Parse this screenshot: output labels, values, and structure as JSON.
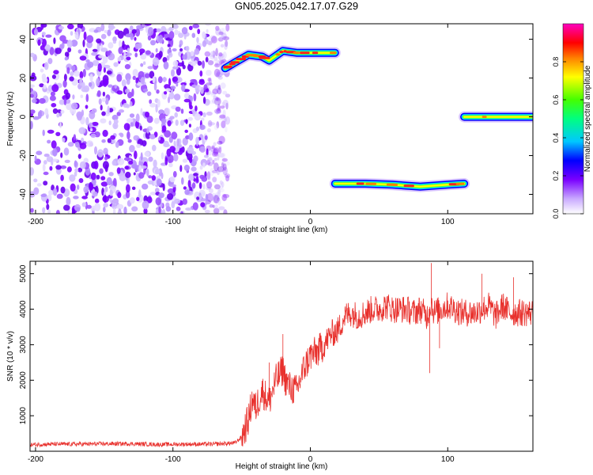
{
  "title": "GN05.2025.042.17.07.G29",
  "chart_data": [
    {
      "type": "heatmap",
      "xlabel": "Height of straight line (km)",
      "ylabel": "Frequency (Hz)",
      "xlim": [
        -204,
        162
      ],
      "ylim": [
        -50,
        48
      ],
      "xticks": [
        -200,
        -100,
        0,
        100
      ],
      "yticks": [
        -40,
        -20,
        0,
        20,
        40
      ],
      "colorbar": {
        "label": "Normalized spectral amplitude",
        "range": [
          0,
          1
        ],
        "ticks": [
          0,
          0.2,
          0.4,
          0.6,
          0.8
        ]
      },
      "noise_region": {
        "x_range": [
          -204,
          -60
        ],
        "y_range": [
          -50,
          48
        ]
      },
      "tracks": [
        {
          "points": [
            [
              -62,
              25
            ],
            [
              -55,
              28
            ],
            [
              -45,
              32
            ],
            [
              -35,
              31
            ],
            [
              -30,
              29
            ],
            [
              -20,
              34
            ],
            [
              -10,
              33
            ],
            [
              0,
              33
            ],
            [
              18,
              33
            ]
          ],
          "peak": 0.8
        },
        {
          "points": [
            [
              18,
              -34.5
            ],
            [
              40,
              -34.5
            ],
            [
              60,
              -35
            ],
            [
              80,
              -36
            ],
            [
              100,
              -35
            ],
            [
              112,
              -34.5
            ]
          ],
          "peak": 0.85
        },
        {
          "points": [
            [
              112,
              0
            ],
            [
              130,
              0
            ],
            [
              162,
              0
            ]
          ],
          "peak": 0.9
        }
      ]
    },
    {
      "type": "line",
      "xlabel": "Height of straight line (km)",
      "ylabel": "SNR (10 * v/v)",
      "xlim": [
        -204,
        162
      ],
      "ylim": [
        0,
        5350
      ],
      "xticks": [
        -200,
        -100,
        0,
        100
      ],
      "yticks": [
        1000,
        2000,
        3000,
        4000,
        5000
      ],
      "series": [
        {
          "color": "#e8312d",
          "x": [
            -204,
            -190,
            -170,
            -150,
            -130,
            -110,
            -90,
            -70,
            -55,
            -50,
            -45,
            -42,
            -40,
            -35,
            -30,
            -25,
            -20,
            -18,
            -15,
            -10,
            -5,
            0,
            5,
            10,
            15,
            20,
            25,
            30,
            35,
            40,
            45,
            50,
            55,
            60,
            65,
            70,
            75,
            80,
            85,
            88,
            90,
            95,
            100,
            105,
            110,
            115,
            120,
            125,
            130,
            135,
            140,
            145,
            150,
            155,
            162
          ],
          "y": [
            180,
            200,
            200,
            210,
            210,
            190,
            200,
            200,
            230,
            400,
            900,
            1500,
            1200,
            1700,
            1400,
            2000,
            2300,
            2000,
            1800,
            1700,
            2300,
            2700,
            2800,
            3000,
            3300,
            3400,
            3800,
            3900,
            3800,
            3900,
            4000,
            4000,
            4100,
            4000,
            4000,
            4000,
            3900,
            4000,
            3800,
            4200,
            3900,
            4000,
            4100,
            4000,
            3900,
            3900,
            3900,
            4000,
            4100,
            3800,
            4100,
            3900,
            3900,
            3900,
            3900
          ],
          "spikes": [
            [
              -30,
              2500
            ],
            [
              -20,
              3300
            ],
            [
              88,
              5300
            ],
            [
              87,
              2200
            ],
            [
              94,
              2900
            ],
            [
              125,
              5000
            ],
            [
              148,
              4900
            ]
          ],
          "noise": 180
        }
      ]
    }
  ]
}
